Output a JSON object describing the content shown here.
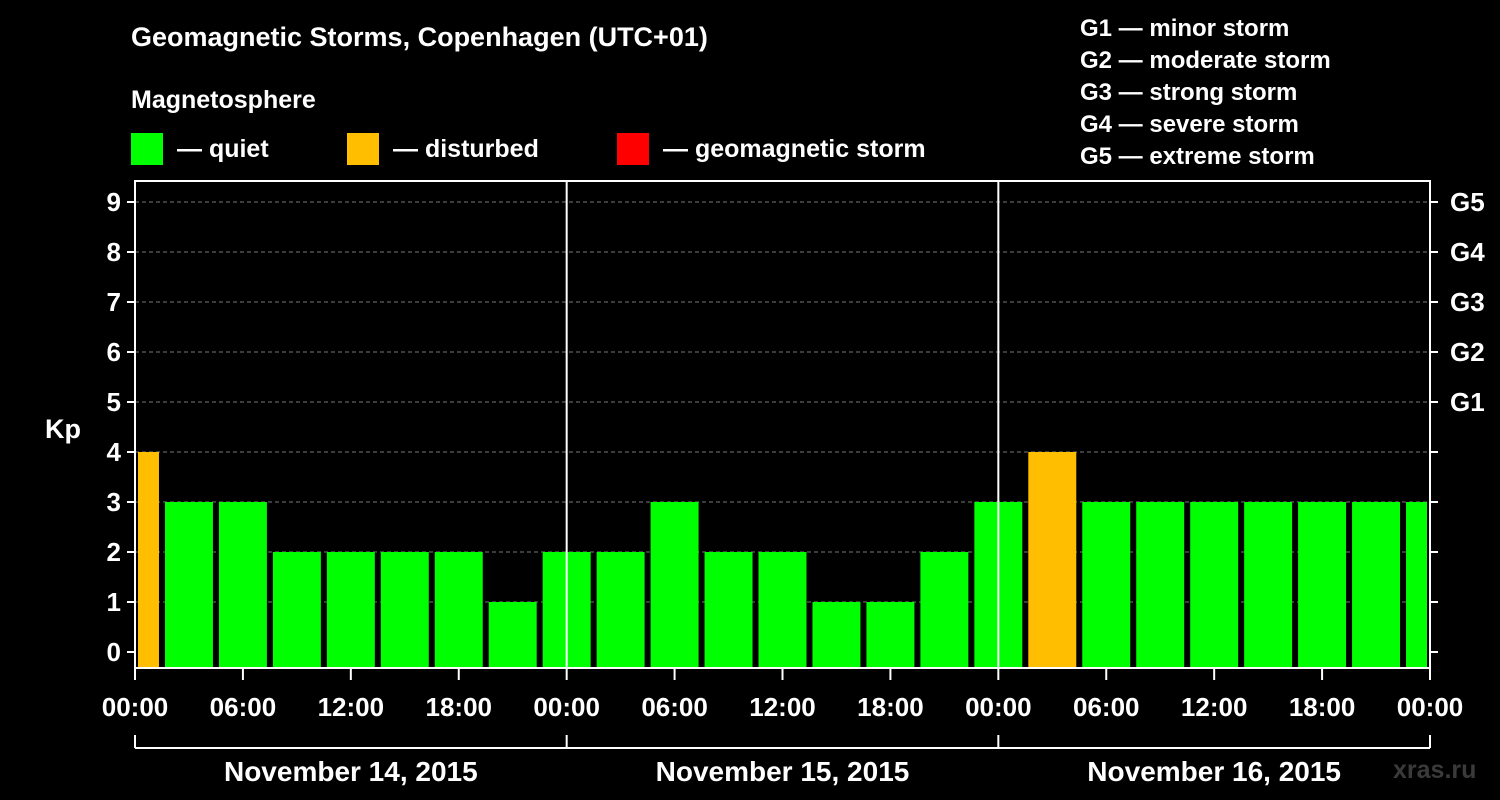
{
  "title": "Geomagnetic Storms, Copenhagen (UTC+01)",
  "section_label": "Magnetosphere",
  "legend": [
    {
      "label": "— quiet",
      "color": "#00ff00"
    },
    {
      "label": "— disturbed",
      "color": "#ffbf00"
    },
    {
      "label": "— geomagnetic storm",
      "color": "#ff0000"
    }
  ],
  "storm_scale": [
    "G1 — minor storm",
    "G2 — moderate storm",
    "G3 — strong storm",
    "G4 — severe storm",
    "G5 — extreme storm"
  ],
  "watermark": "xras.ru",
  "chart_data": {
    "type": "bar",
    "ylabel": "Kp",
    "ylim": [
      0,
      9
    ],
    "yticks": [
      0,
      1,
      2,
      3,
      4,
      5,
      6,
      7,
      8,
      9
    ],
    "right_axis_labels": [
      {
        "kp": 5,
        "label": "G1"
      },
      {
        "kp": 6,
        "label": "G2"
      },
      {
        "kp": 7,
        "label": "G3"
      },
      {
        "kp": 8,
        "label": "G4"
      },
      {
        "kp": 9,
        "label": "G5"
      }
    ],
    "x_tick_labels": [
      "00:00",
      "06:00",
      "12:00",
      "18:00",
      "00:00",
      "06:00",
      "12:00",
      "18:00",
      "00:00",
      "06:00",
      "12:00",
      "18:00",
      "00:00"
    ],
    "days": [
      "November 14, 2015",
      "November 15, 2015",
      "November 16, 2015"
    ],
    "grid": "horizontal dashed",
    "x_start_hour": 0,
    "x_end_hour": 72,
    "bars": [
      {
        "start_hour": 0,
        "end_hour": 1.5,
        "kp": 4,
        "status": "disturbed"
      },
      {
        "start_hour": 1.5,
        "end_hour": 4.5,
        "kp": 3,
        "status": "quiet"
      },
      {
        "start_hour": 4.5,
        "end_hour": 7.5,
        "kp": 3,
        "status": "quiet"
      },
      {
        "start_hour": 7.5,
        "end_hour": 10.5,
        "kp": 2,
        "status": "quiet"
      },
      {
        "start_hour": 10.5,
        "end_hour": 13.5,
        "kp": 2,
        "status": "quiet"
      },
      {
        "start_hour": 13.5,
        "end_hour": 16.5,
        "kp": 2,
        "status": "quiet"
      },
      {
        "start_hour": 16.5,
        "end_hour": 19.5,
        "kp": 2,
        "status": "quiet"
      },
      {
        "start_hour": 19.5,
        "end_hour": 22.5,
        "kp": 1,
        "status": "quiet"
      },
      {
        "start_hour": 22.5,
        "end_hour": 25.5,
        "kp": 2,
        "status": "quiet"
      },
      {
        "start_hour": 25.5,
        "end_hour": 28.5,
        "kp": 2,
        "status": "quiet"
      },
      {
        "start_hour": 28.5,
        "end_hour": 31.5,
        "kp": 3,
        "status": "quiet"
      },
      {
        "start_hour": 31.5,
        "end_hour": 34.5,
        "kp": 2,
        "status": "quiet"
      },
      {
        "start_hour": 34.5,
        "end_hour": 37.5,
        "kp": 2,
        "status": "quiet"
      },
      {
        "start_hour": 37.5,
        "end_hour": 40.5,
        "kp": 1,
        "status": "quiet"
      },
      {
        "start_hour": 40.5,
        "end_hour": 43.5,
        "kp": 1,
        "status": "quiet"
      },
      {
        "start_hour": 43.5,
        "end_hour": 46.5,
        "kp": 2,
        "status": "quiet"
      },
      {
        "start_hour": 46.5,
        "end_hour": 49.5,
        "kp": 3,
        "status": "quiet"
      },
      {
        "start_hour": 49.5,
        "end_hour": 52.5,
        "kp": 4,
        "status": "disturbed"
      },
      {
        "start_hour": 52.5,
        "end_hour": 55.5,
        "kp": 3,
        "status": "quiet"
      },
      {
        "start_hour": 55.5,
        "end_hour": 58.5,
        "kp": 3,
        "status": "quiet"
      },
      {
        "start_hour": 58.5,
        "end_hour": 61.5,
        "kp": 3,
        "status": "quiet"
      },
      {
        "start_hour": 61.5,
        "end_hour": 64.5,
        "kp": 3,
        "status": "quiet"
      },
      {
        "start_hour": 64.5,
        "end_hour": 67.5,
        "kp": 3,
        "status": "quiet"
      },
      {
        "start_hour": 67.5,
        "end_hour": 70.5,
        "kp": 3,
        "status": "quiet"
      },
      {
        "start_hour": 70.5,
        "end_hour": 72,
        "kp": 3,
        "status": "quiet"
      }
    ]
  }
}
